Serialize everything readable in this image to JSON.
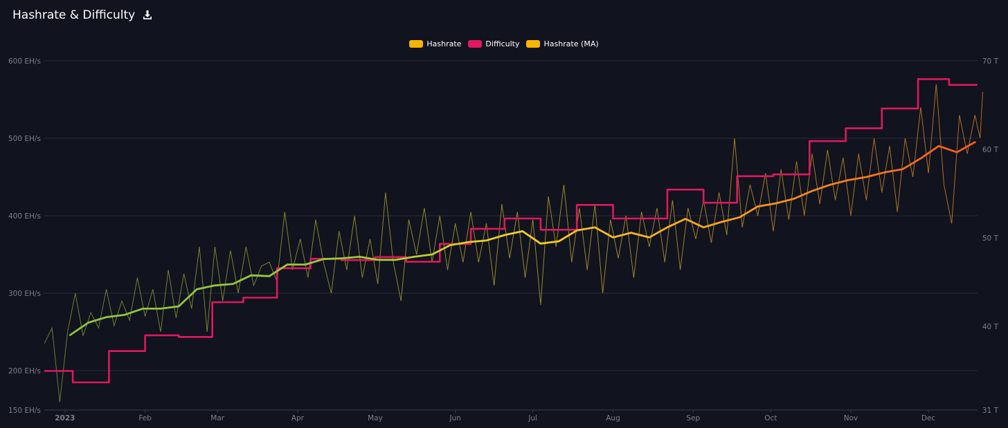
{
  "header": {
    "title": "Hashrate & Difficulty",
    "download_icon": "download-icon"
  },
  "legend": [
    {
      "label": "Hashrate",
      "color": "#f7b500"
    },
    {
      "label": "Difficulty",
      "color": "#e0185f"
    },
    {
      "label": "Hashrate (MA)",
      "color": "#f7b500"
    }
  ],
  "colors": {
    "background": "#11131e",
    "grid": "#262838",
    "axis_text": "#7d7f8c",
    "difficulty": "#e0185f",
    "ma_gradient": [
      "#8fc43f",
      "#f5d01f",
      "#fb8b1e",
      "#f7581d"
    ]
  },
  "chart_data": {
    "type": "line",
    "title": "Hashrate & Difficulty",
    "x_start": "2022-12-24",
    "x_ticks": [
      "2023",
      "Feb",
      "Mar",
      "Apr",
      "May",
      "Jun",
      "Jul",
      "Aug",
      "Sep",
      "Oct",
      "Nov",
      "Dec"
    ],
    "y_left": {
      "unit": "EH/s",
      "ticks": [
        150,
        200,
        300,
        400,
        500,
        600
      ],
      "tick_labels": [
        "150 EH/s",
        "200 EH/s",
        "300 EH/s",
        "400 EH/s",
        "500 EH/s",
        "600 EH/s"
      ],
      "range": [
        150,
        600
      ]
    },
    "y_right": {
      "unit": "T",
      "ticks": [
        31,
        40,
        50,
        60,
        70
      ],
      "tick_labels": [
        "31 T",
        "40 T",
        "50 T",
        "60 T",
        "70 T"
      ],
      "range": [
        31,
        70
      ]
    },
    "grid": true,
    "legend_position": "top-center",
    "series": [
      {
        "name": "Difficulty",
        "axis": "right",
        "kind": "step",
        "points": [
          [
            "2022-12-24",
            35.36
          ],
          [
            "2023-01-04",
            34.09
          ],
          [
            "2023-01-18",
            37.59
          ],
          [
            "2023-02-01",
            39.35
          ],
          [
            "2023-02-14",
            39.16
          ],
          [
            "2023-02-27",
            43.05
          ],
          [
            "2023-03-11",
            43.55
          ],
          [
            "2023-03-24",
            46.84
          ],
          [
            "2023-04-06",
            47.89
          ],
          [
            "2023-04-18",
            47.74
          ],
          [
            "2023-05-01",
            48.08
          ],
          [
            "2023-05-13",
            47.56
          ],
          [
            "2023-05-26",
            49.55
          ],
          [
            "2023-06-07",
            51.24
          ],
          [
            "2023-06-20",
            52.39
          ],
          [
            "2023-07-04",
            51.13
          ],
          [
            "2023-07-18",
            53.91
          ],
          [
            "2023-08-01",
            52.39
          ],
          [
            "2023-08-20",
            52.39
          ],
          [
            "2023-08-22",
            55.62
          ],
          [
            "2023-09-05",
            54.15
          ],
          [
            "2023-09-18",
            57.12
          ],
          [
            "2023-10-02",
            57.32
          ],
          [
            "2023-10-16",
            61.03
          ],
          [
            "2023-10-30",
            62.46
          ],
          [
            "2023-11-13",
            64.68
          ],
          [
            "2023-11-27",
            67.96
          ],
          [
            "2023-12-09",
            67.31
          ],
          [
            "2023-12-20",
            67.31
          ]
        ]
      },
      {
        "name": "Hashrate (MA)",
        "axis": "left",
        "points": [
          [
            "2023-01-03",
            246
          ],
          [
            "2023-01-10",
            262
          ],
          [
            "2023-01-17",
            269
          ],
          [
            "2023-01-24",
            272
          ],
          [
            "2023-01-31",
            280
          ],
          [
            "2023-02-07",
            280
          ],
          [
            "2023-02-14",
            283
          ],
          [
            "2023-02-21",
            305
          ],
          [
            "2023-02-28",
            310
          ],
          [
            "2023-03-07",
            312
          ],
          [
            "2023-03-14",
            323
          ],
          [
            "2023-03-21",
            322
          ],
          [
            "2023-03-28",
            337
          ],
          [
            "2023-04-04",
            337
          ],
          [
            "2023-04-11",
            344
          ],
          [
            "2023-04-18",
            345
          ],
          [
            "2023-04-25",
            347
          ],
          [
            "2023-05-02",
            343
          ],
          [
            "2023-05-09",
            343
          ],
          [
            "2023-05-16",
            347
          ],
          [
            "2023-05-23",
            350
          ],
          [
            "2023-05-30",
            362
          ],
          [
            "2023-06-06",
            366
          ],
          [
            "2023-06-13",
            368
          ],
          [
            "2023-06-20",
            375
          ],
          [
            "2023-06-27",
            380
          ],
          [
            "2023-07-04",
            364
          ],
          [
            "2023-07-11",
            367
          ],
          [
            "2023-07-18",
            381
          ],
          [
            "2023-07-25",
            385
          ],
          [
            "2023-08-01",
            372
          ],
          [
            "2023-08-08",
            378
          ],
          [
            "2023-08-15",
            372
          ],
          [
            "2023-08-22",
            385
          ],
          [
            "2023-08-29",
            396
          ],
          [
            "2023-09-05",
            385
          ],
          [
            "2023-09-12",
            392
          ],
          [
            "2023-09-19",
            398
          ],
          [
            "2023-09-26",
            412
          ],
          [
            "2023-10-03",
            416
          ],
          [
            "2023-10-10",
            422
          ],
          [
            "2023-10-17",
            432
          ],
          [
            "2023-10-24",
            440
          ],
          [
            "2023-10-31",
            446
          ],
          [
            "2023-11-07",
            450
          ],
          [
            "2023-11-14",
            456
          ],
          [
            "2023-11-21",
            460
          ],
          [
            "2023-11-28",
            474
          ],
          [
            "2023-12-05",
            490
          ],
          [
            "2023-12-12",
            482
          ],
          [
            "2023-12-19",
            495
          ]
        ]
      },
      {
        "name": "Hashrate",
        "axis": "left",
        "points": [
          [
            "2022-12-24",
            235
          ],
          [
            "2022-12-27",
            255
          ],
          [
            "2022-12-30",
            160
          ],
          [
            "2023-01-02",
            250
          ],
          [
            "2023-01-05",
            300
          ],
          [
            "2023-01-08",
            245
          ],
          [
            "2023-01-11",
            275
          ],
          [
            "2023-01-14",
            255
          ],
          [
            "2023-01-17",
            305
          ],
          [
            "2023-01-20",
            258
          ],
          [
            "2023-01-23",
            290
          ],
          [
            "2023-01-26",
            265
          ],
          [
            "2023-01-29",
            320
          ],
          [
            "2023-02-01",
            270
          ],
          [
            "2023-02-04",
            305
          ],
          [
            "2023-02-07",
            250
          ],
          [
            "2023-02-10",
            330
          ],
          [
            "2023-02-13",
            268
          ],
          [
            "2023-02-16",
            325
          ],
          [
            "2023-02-19",
            280
          ],
          [
            "2023-02-22",
            360
          ],
          [
            "2023-02-25",
            250
          ],
          [
            "2023-02-28",
            360
          ],
          [
            "2023-03-03",
            290
          ],
          [
            "2023-03-06",
            355
          ],
          [
            "2023-03-09",
            300
          ],
          [
            "2023-03-12",
            360
          ],
          [
            "2023-03-15",
            310
          ],
          [
            "2023-03-18",
            335
          ],
          [
            "2023-03-21",
            340
          ],
          [
            "2023-03-24",
            315
          ],
          [
            "2023-03-27",
            405
          ],
          [
            "2023-03-30",
            330
          ],
          [
            "2023-04-02",
            370
          ],
          [
            "2023-04-05",
            320
          ],
          [
            "2023-04-08",
            395
          ],
          [
            "2023-04-11",
            340
          ],
          [
            "2023-04-14",
            300
          ],
          [
            "2023-04-17",
            380
          ],
          [
            "2023-04-20",
            330
          ],
          [
            "2023-04-23",
            400
          ],
          [
            "2023-04-26",
            320
          ],
          [
            "2023-04-29",
            370
          ],
          [
            "2023-05-02",
            312
          ],
          [
            "2023-05-05",
            430
          ],
          [
            "2023-05-08",
            340
          ],
          [
            "2023-05-11",
            290
          ],
          [
            "2023-05-14",
            395
          ],
          [
            "2023-05-17",
            350
          ],
          [
            "2023-05-20",
            410
          ],
          [
            "2023-05-23",
            340
          ],
          [
            "2023-05-26",
            400
          ],
          [
            "2023-05-29",
            330
          ],
          [
            "2023-06-01",
            390
          ],
          [
            "2023-06-04",
            340
          ],
          [
            "2023-06-07",
            405
          ],
          [
            "2023-06-10",
            340
          ],
          [
            "2023-06-13",
            390
          ],
          [
            "2023-06-16",
            310
          ],
          [
            "2023-06-19",
            415
          ],
          [
            "2023-06-22",
            345
          ],
          [
            "2023-06-25",
            405
          ],
          [
            "2023-06-28",
            320
          ],
          [
            "2023-07-01",
            395
          ],
          [
            "2023-07-04",
            285
          ],
          [
            "2023-07-07",
            425
          ],
          [
            "2023-07-10",
            360
          ],
          [
            "2023-07-13",
            440
          ],
          [
            "2023-07-16",
            340
          ],
          [
            "2023-07-19",
            410
          ],
          [
            "2023-07-22",
            330
          ],
          [
            "2023-07-25",
            415
          ],
          [
            "2023-07-28",
            300
          ],
          [
            "2023-07-31",
            395
          ],
          [
            "2023-08-03",
            345
          ],
          [
            "2023-08-06",
            400
          ],
          [
            "2023-08-09",
            320
          ],
          [
            "2023-08-12",
            405
          ],
          [
            "2023-08-15",
            360
          ],
          [
            "2023-08-18",
            410
          ],
          [
            "2023-08-21",
            340
          ],
          [
            "2023-08-24",
            420
          ],
          [
            "2023-08-27",
            330
          ],
          [
            "2023-08-30",
            410
          ],
          [
            "2023-09-02",
            370
          ],
          [
            "2023-09-05",
            420
          ],
          [
            "2023-09-08",
            365
          ],
          [
            "2023-09-11",
            430
          ],
          [
            "2023-09-14",
            375
          ],
          [
            "2023-09-17",
            500
          ],
          [
            "2023-09-20",
            385
          ],
          [
            "2023-09-23",
            440
          ],
          [
            "2023-09-26",
            400
          ],
          [
            "2023-09-29",
            455
          ],
          [
            "2023-10-02",
            380
          ],
          [
            "2023-10-05",
            460
          ],
          [
            "2023-10-08",
            395
          ],
          [
            "2023-10-11",
            470
          ],
          [
            "2023-10-14",
            400
          ],
          [
            "2023-10-17",
            480
          ],
          [
            "2023-10-20",
            415
          ],
          [
            "2023-10-23",
            485
          ],
          [
            "2023-10-26",
            420
          ],
          [
            "2023-10-29",
            475
          ],
          [
            "2023-11-01",
            400
          ],
          [
            "2023-11-04",
            480
          ],
          [
            "2023-11-07",
            420
          ],
          [
            "2023-11-10",
            500
          ],
          [
            "2023-11-13",
            430
          ],
          [
            "2023-11-16",
            490
          ],
          [
            "2023-11-19",
            405
          ],
          [
            "2023-11-22",
            500
          ],
          [
            "2023-11-25",
            450
          ],
          [
            "2023-11-28",
            540
          ],
          [
            "2023-12-01",
            455
          ],
          [
            "2023-12-04",
            570
          ],
          [
            "2023-12-07",
            440
          ],
          [
            "2023-12-10",
            390
          ],
          [
            "2023-12-13",
            530
          ],
          [
            "2023-12-16",
            480
          ],
          [
            "2023-12-19",
            530
          ],
          [
            "2023-12-21",
            500
          ],
          [
            "2023-12-22",
            560
          ]
        ]
      }
    ]
  }
}
